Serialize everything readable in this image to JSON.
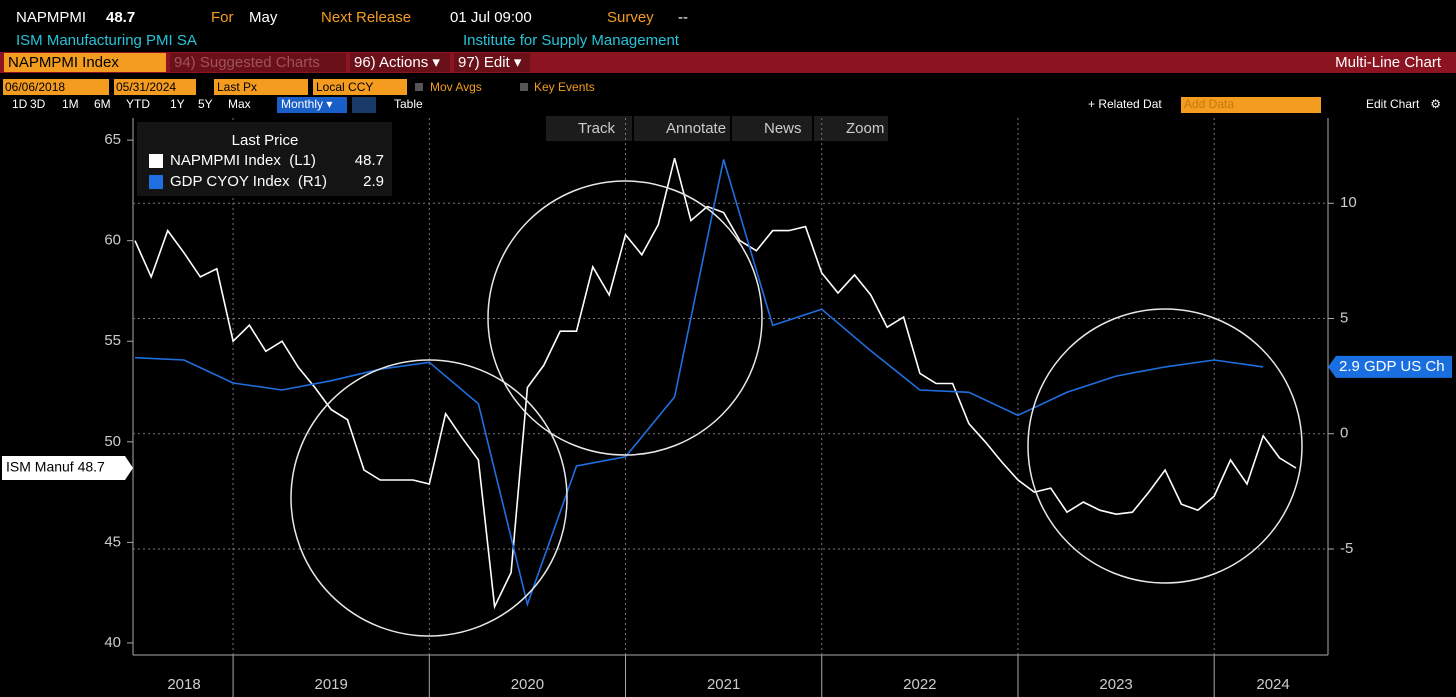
{
  "header": {
    "ticker": "NAPMPMI",
    "value": "48.7",
    "for_label": "For",
    "for_value": "May",
    "next_release_label": "Next Release",
    "next_release_value": "01 Jul 09:00",
    "survey_label": "Survey",
    "survey_value": "--",
    "name": "ISM Manufacturing PMI SA",
    "source": "Institute for Supply Management"
  },
  "toolbar": {
    "security": "NAPMPMI Index",
    "suggested": "94) Suggested Charts",
    "actions": "96) Actions ▾",
    "edit": "97) Edit ▾",
    "view": "Multi-Line Chart",
    "start_date": "06/06/2018",
    "end_date": "05/31/2024",
    "field": "Last Px",
    "currency": "Local CCY",
    "mov_avgs": "Mov Avgs",
    "key_events": "Key Events",
    "periods": [
      "1D",
      "3D",
      "1M",
      "6M",
      "YTD",
      "1Y",
      "5Y",
      "Max"
    ],
    "frequency": "Monthly ▾",
    "table": "Table",
    "related": "+ Related Dat",
    "add_data": "Add Data",
    "edit_chart": "Edit Chart",
    "tools": [
      "Track",
      "Annotate",
      "News",
      "Zoom"
    ]
  },
  "chart_data": {
    "type": "line",
    "legend_title": "Last Price",
    "grid": true,
    "xlim": [
      2018.49,
      2024.58
    ],
    "xticks": [
      {
        "value": 2018.75,
        "label": "2018"
      },
      {
        "value": 2019.5,
        "label": "2019"
      },
      {
        "value": 2020.5,
        "label": "2020"
      },
      {
        "value": 2021.5,
        "label": "2021"
      },
      {
        "value": 2022.5,
        "label": "2022"
      },
      {
        "value": 2023.5,
        "label": "2023"
      },
      {
        "value": 2024.3,
        "label": "2024"
      }
    ],
    "x_gridlines": [
      2019,
      2020,
      2021,
      2022,
      2023,
      2024
    ],
    "ylim": [
      39.4,
      66.1
    ],
    "yticks": [
      40,
      45,
      50,
      55,
      60,
      65
    ],
    "y2lim": [
      -9.6,
      13.7
    ],
    "y2ticks": [
      -5,
      0,
      5,
      10
    ],
    "series": [
      {
        "name": "NAPMPMI Index  (L1)",
        "color": "#ffffff",
        "legend_value": 48.7,
        "x": [
          2018.5,
          2018.583,
          2018.667,
          2018.75,
          2018.833,
          2018.917,
          2019.0,
          2019.083,
          2019.167,
          2019.25,
          2019.333,
          2019.417,
          2019.5,
          2019.583,
          2019.667,
          2019.75,
          2019.833,
          2019.917,
          2020.0,
          2020.083,
          2020.167,
          2020.25,
          2020.333,
          2020.417,
          2020.5,
          2020.583,
          2020.667,
          2020.75,
          2020.833,
          2020.917,
          2021.0,
          2021.083,
          2021.167,
          2021.25,
          2021.333,
          2021.417,
          2021.5,
          2021.583,
          2021.667,
          2021.75,
          2021.833,
          2021.917,
          2022.0,
          2022.083,
          2022.167,
          2022.25,
          2022.333,
          2022.417,
          2022.5,
          2022.583,
          2022.667,
          2022.75,
          2022.833,
          2022.917,
          2023.0,
          2023.083,
          2023.167,
          2023.25,
          2023.333,
          2023.417,
          2023.5,
          2023.583,
          2023.667,
          2023.75,
          2023.833,
          2023.917,
          2024.0,
          2024.083,
          2024.167,
          2024.25,
          2024.333,
          2024.417
        ],
        "values": [
          60.0,
          58.2,
          60.5,
          59.4,
          58.2,
          58.6,
          55.0,
          55.8,
          54.5,
          55.0,
          53.7,
          52.7,
          51.6,
          51.1,
          48.6,
          48.1,
          48.1,
          48.1,
          47.9,
          51.4,
          50.2,
          49.1,
          41.8,
          43.5,
          52.7,
          53.8,
          55.5,
          55.5,
          58.7,
          57.3,
          60.3,
          59.3,
          60.8,
          64.1,
          61.0,
          61.7,
          61.4,
          60.0,
          59.5,
          60.5,
          60.5,
          60.7,
          58.4,
          57.4,
          58.3,
          57.3,
          55.7,
          56.2,
          53.4,
          52.9,
          52.9,
          50.9,
          50.0,
          49.0,
          48.1,
          47.5,
          47.7,
          46.5,
          47.0,
          46.6,
          46.4,
          46.5,
          47.5,
          48.6,
          46.9,
          46.6,
          47.3,
          49.1,
          47.9,
          50.3,
          49.2,
          48.7
        ]
      },
      {
        "name": "GDP CYOY Index  (R1)",
        "color": "#1f6fe0",
        "axis": "y2",
        "legend_value": 2.9,
        "x": [
          2018.5,
          2018.75,
          2019.0,
          2019.25,
          2019.5,
          2019.75,
          2020.0,
          2020.25,
          2020.5,
          2020.75,
          2021.0,
          2021.25,
          2021.5,
          2021.75,
          2022.0,
          2022.25,
          2022.5,
          2022.75,
          2023.0,
          2023.25,
          2023.5,
          2023.75,
          2024.0,
          2024.25
        ],
        "values": [
          3.3,
          3.2,
          2.2,
          1.9,
          2.3,
          2.8,
          3.1,
          1.3,
          -7.4,
          -1.4,
          -1.0,
          1.6,
          11.9,
          4.7,
          5.4,
          3.6,
          1.9,
          1.8,
          0.8,
          1.8,
          2.5,
          2.9,
          3.2,
          2.9
        ]
      }
    ],
    "axis_tags": [
      {
        "text": "ISM Manuf 48.7",
        "value": 48.7,
        "axis": "y"
      },
      {
        "text": "2.9 GDP US Ch",
        "value": 2.9,
        "axis": "y2"
      }
    ]
  }
}
